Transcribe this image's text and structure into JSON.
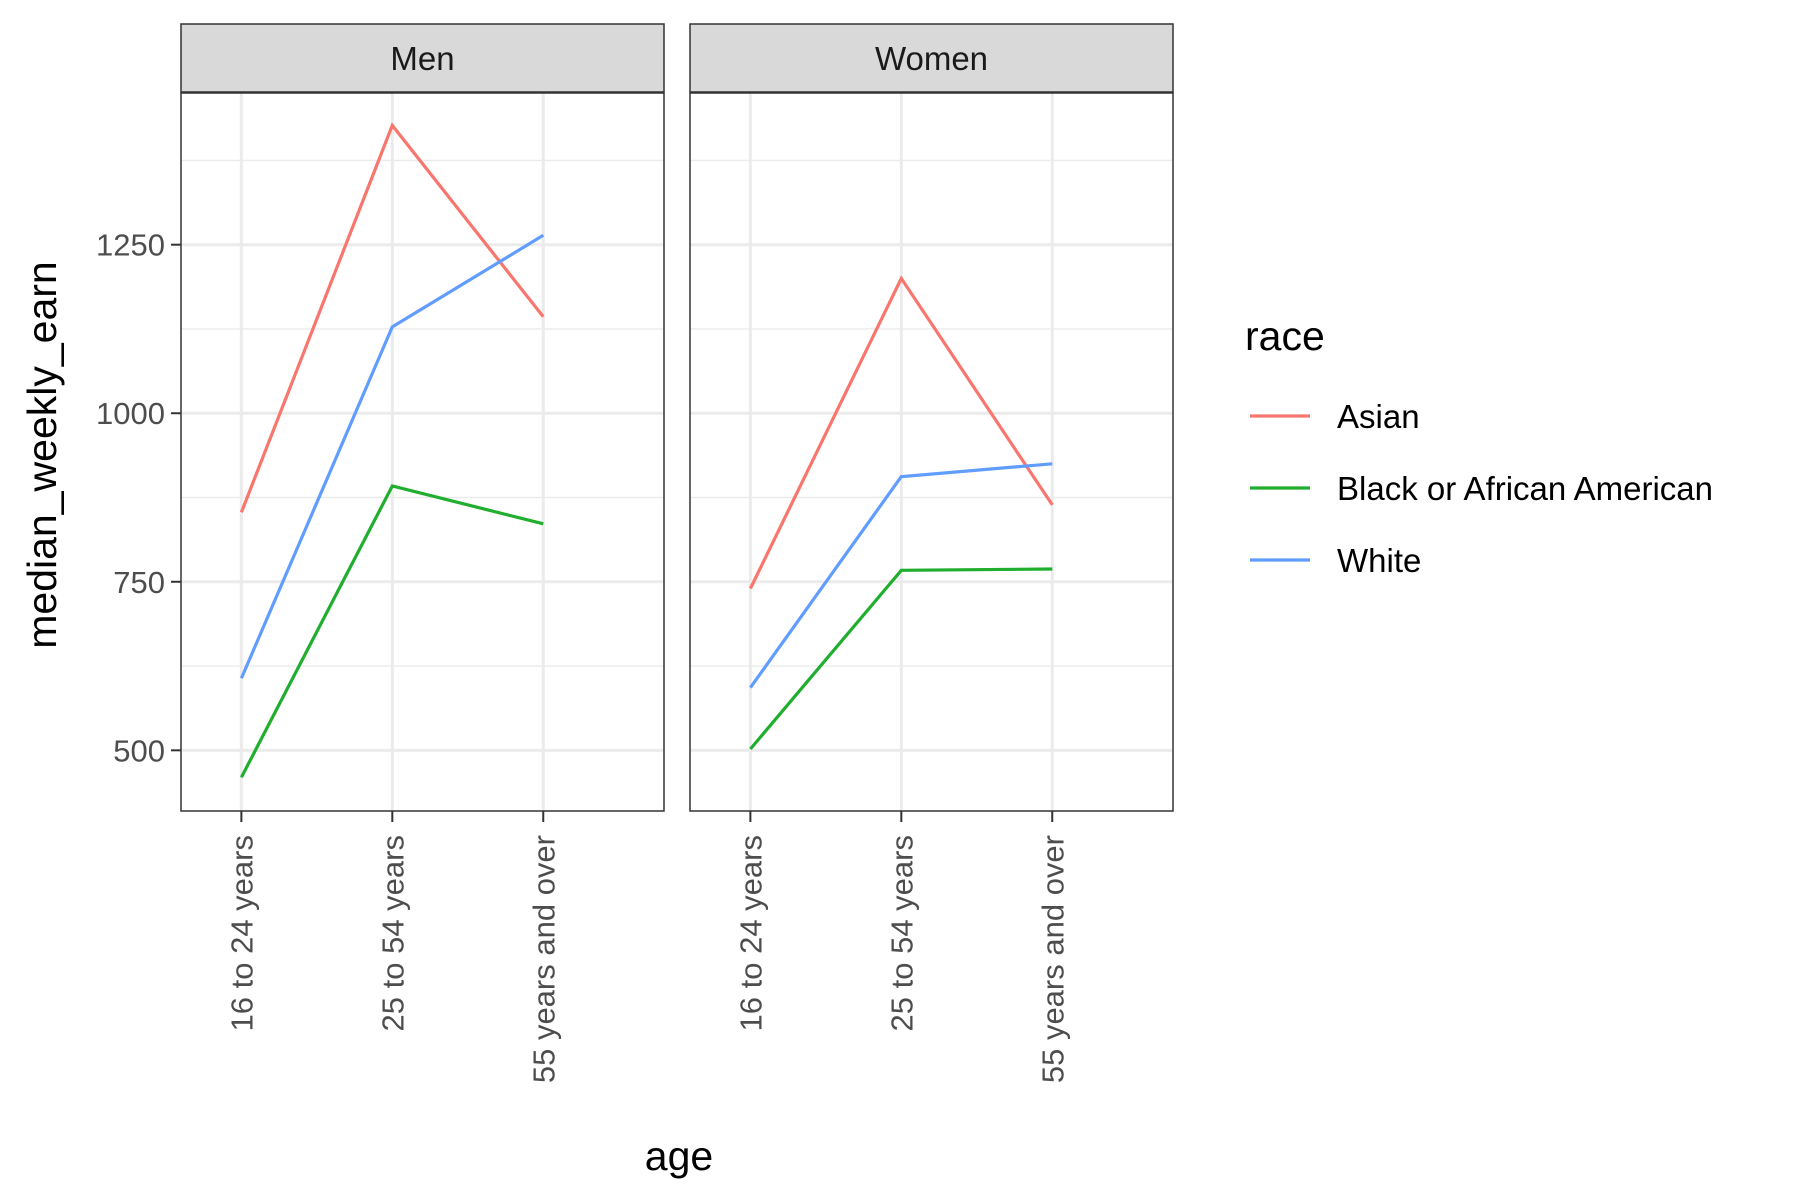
{
  "chart_data": {
    "type": "line",
    "xlabel": "age",
    "ylabel": "median_weekly_earn",
    "categories": [
      "16 to 24 years",
      "25 to 54 years",
      "55 years and over"
    ],
    "ylim": [
      410,
      1475
    ],
    "y_ticks": [
      500,
      750,
      1000,
      1250
    ],
    "y_tick_labels": [
      "500",
      "750",
      "1000",
      "1250"
    ],
    "grid": true,
    "legend": {
      "title": "race",
      "position": "right",
      "entries": [
        "Asian",
        "Black or African American",
        "White"
      ]
    },
    "colors": {
      "Asian": "#F8766D",
      "Black or African American": "#1FAE2E",
      "White": "#619CFF"
    },
    "panels": [
      {
        "strip": "Men",
        "series": [
          {
            "name": "Asian",
            "values": [
              853,
              1427,
              1143
            ]
          },
          {
            "name": "Black or African American",
            "values": [
              460,
              892,
              836
            ]
          },
          {
            "name": "White",
            "values": [
              607,
              1128,
              1264
            ]
          }
        ]
      },
      {
        "strip": "Women",
        "series": [
          {
            "name": "Asian",
            "values": [
              740,
              1200,
              864
            ]
          },
          {
            "name": "Black or African American",
            "values": [
              502,
              767,
              769
            ]
          },
          {
            "name": "White",
            "values": [
              593,
              906,
              925
            ]
          }
        ]
      }
    ]
  }
}
